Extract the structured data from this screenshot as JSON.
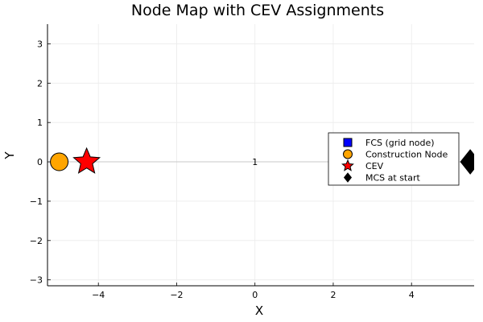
{
  "chart_data": {
    "type": "scatter",
    "title": "Node Map with CEV Assignments",
    "xlabel": "X",
    "ylabel": "Y",
    "xlim": [
      -5.3,
      5.6
    ],
    "ylim": [
      -3.15,
      3.5
    ],
    "xticks": [
      {
        "value": -4,
        "label": "−4"
      },
      {
        "value": -2,
        "label": "−2"
      },
      {
        "value": 0,
        "label": "0"
      },
      {
        "value": 2,
        "label": "2"
      },
      {
        "value": 4,
        "label": "4"
      }
    ],
    "yticks": [
      {
        "value": -3,
        "label": "−3"
      },
      {
        "value": -2,
        "label": "−2"
      },
      {
        "value": -1,
        "label": "−1"
      },
      {
        "value": 0,
        "label": "0"
      },
      {
        "value": 1,
        "label": "1"
      },
      {
        "value": 2,
        "label": "2"
      },
      {
        "value": 3,
        "label": "3"
      }
    ],
    "grid": true,
    "legend_position": "right",
    "edges": [
      {
        "from": [
          -5.0,
          0
        ],
        "to": [
          5.5,
          0
        ],
        "color": "#c8c8c8"
      }
    ],
    "annotations": [
      {
        "x": 0,
        "y": 0,
        "text": "1"
      }
    ],
    "series": [
      {
        "name": "FCS (grid node)",
        "marker": "square",
        "color": "#0000ff",
        "points": []
      },
      {
        "name": "Construction Node",
        "marker": "circle",
        "color": "#ffa500",
        "points": [
          {
            "x": -5.0,
            "y": 0
          }
        ]
      },
      {
        "name": "CEV",
        "marker": "star",
        "color": "#ff0000",
        "points": [
          {
            "x": -4.3,
            "y": 0
          }
        ]
      },
      {
        "name": "MCS at start",
        "marker": "diamond",
        "color": "#000000",
        "points": [
          {
            "x": 5.5,
            "y": 0
          }
        ]
      }
    ]
  }
}
